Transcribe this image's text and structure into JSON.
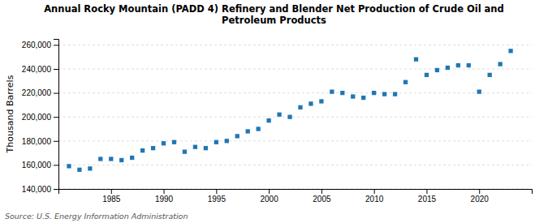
{
  "chart_data": {
    "type": "scatter",
    "title": "Annual Rocky Mountain (PADD 4) Refinery and Blender Net Production of Crude Oil and\nPetroleum Products",
    "ylabel": "Thousand Barrels",
    "source": "Source: U.S. Energy Information Administration",
    "x": [
      1981,
      1982,
      1983,
      1984,
      1985,
      1986,
      1987,
      1988,
      1989,
      1990,
      1991,
      1992,
      1993,
      1994,
      1995,
      1996,
      1997,
      1998,
      1999,
      2000,
      2001,
      2002,
      2003,
      2004,
      2005,
      2006,
      2007,
      2008,
      2009,
      2010,
      2011,
      2012,
      2013,
      2014,
      2015,
      2016,
      2017,
      2018,
      2019,
      2020,
      2021,
      2022,
      2023
    ],
    "values": [
      159000,
      156000,
      157000,
      165000,
      165000,
      164000,
      166000,
      172000,
      174000,
      178000,
      179000,
      171000,
      175000,
      174000,
      179000,
      180000,
      184000,
      188000,
      190000,
      197000,
      202000,
      200000,
      208000,
      211000,
      213000,
      221000,
      220000,
      217000,
      216000,
      220000,
      219000,
      219000,
      229000,
      248000,
      235000,
      239000,
      241000,
      243000,
      243000,
      221000,
      235000,
      244000,
      255000
    ],
    "xlim": [
      1980,
      2025
    ],
    "xticks": [
      1985,
      1990,
      1995,
      2000,
      2005,
      2010,
      2015,
      2020
    ],
    "ylim": [
      140000,
      265000
    ],
    "yticks": [
      {
        "value": 140000,
        "label": "140,000"
      },
      {
        "value": 160000,
        "label": "160,000"
      },
      {
        "value": 180000,
        "label": "180,000"
      },
      {
        "value": 200000,
        "label": "200,000"
      },
      {
        "value": 220000,
        "label": "220,000"
      },
      {
        "value": 240000,
        "label": "240,000"
      },
      {
        "value": 260000,
        "label": "260,000"
      }
    ],
    "grid": true,
    "marker": "square"
  }
}
